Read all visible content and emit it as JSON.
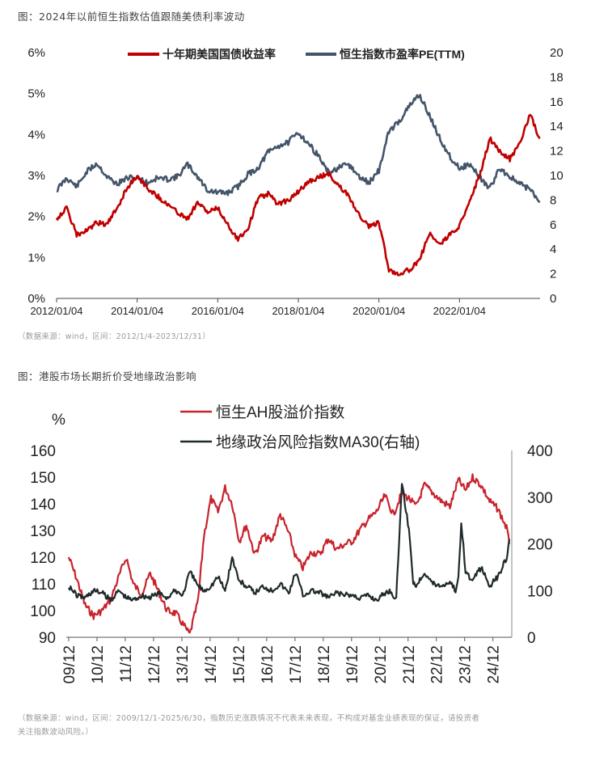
{
  "figure1": {
    "caption": "图：2024年以前恒生指数估值跟随美债利率波动",
    "source": "（数据来源：wind，区间：2012/1/4-2023/12/31）"
  },
  "figure2": {
    "caption": "图：港股市场长期折价受地缘政治影响",
    "source_line1": "（数据来源：wind，区间：2009/12/1-2025/6/30，指数历史涨跌情况不代表未来表现，不构成对基金业绩表现的保证，请投资者",
    "source_line2": "关注指数波动风险。）"
  },
  "chart_data": [
    {
      "type": "line",
      "title": "",
      "x_ticks": [
        "2012/01/04",
        "2014/01/04",
        "2016/01/04",
        "2018/01/04",
        "2020/01/04",
        "2022/01/04"
      ],
      "y_left": {
        "ticks": [
          "0%",
          "1%",
          "2%",
          "3%",
          "4%",
          "5%",
          "6%"
        ],
        "range": [
          0,
          6
        ]
      },
      "y_right": {
        "ticks": [
          "0",
          "2",
          "4",
          "6",
          "8",
          "10",
          "12",
          "14",
          "16",
          "18",
          "20"
        ],
        "range": [
          0,
          20
        ]
      },
      "legend_position": "top",
      "colors": {
        "series_1": "#c00000",
        "series_2": "#44546a"
      },
      "series": [
        {
          "name": "十年期美国国债收益率",
          "axis": "left",
          "x": [
            2012.0,
            2012.25,
            2012.5,
            2012.75,
            2013.0,
            2013.25,
            2013.5,
            2013.75,
            2014.0,
            2014.25,
            2014.5,
            2014.75,
            2015.0,
            2015.25,
            2015.5,
            2015.75,
            2016.0,
            2016.25,
            2016.5,
            2016.75,
            2017.0,
            2017.25,
            2017.5,
            2017.75,
            2018.0,
            2018.25,
            2018.5,
            2018.75,
            2019.0,
            2019.25,
            2019.5,
            2019.75,
            2020.0,
            2020.25,
            2020.5,
            2020.75,
            2021.0,
            2021.25,
            2021.5,
            2021.75,
            2022.0,
            2022.25,
            2022.5,
            2022.75,
            2023.0,
            2023.25,
            2023.5,
            2023.75,
            2023.99
          ],
          "values": [
            1.95,
            2.2,
            1.55,
            1.65,
            1.85,
            1.8,
            2.2,
            2.7,
            3.0,
            2.7,
            2.5,
            2.3,
            2.1,
            1.95,
            2.35,
            2.1,
            2.2,
            1.8,
            1.45,
            1.7,
            2.45,
            2.55,
            2.3,
            2.4,
            2.6,
            2.85,
            2.95,
            3.05,
            2.75,
            2.5,
            2.05,
            1.75,
            1.85,
            0.7,
            0.6,
            0.7,
            0.9,
            1.6,
            1.3,
            1.55,
            1.75,
            2.4,
            3.0,
            3.9,
            3.6,
            3.4,
            3.8,
            4.5,
            3.9
          ]
        },
        {
          "name": "恒生指数市盈率PE(TTM)",
          "axis": "right",
          "x": [
            2012.0,
            2012.25,
            2012.5,
            2012.75,
            2013.0,
            2013.25,
            2013.5,
            2013.75,
            2014.0,
            2014.25,
            2014.5,
            2014.75,
            2015.0,
            2015.25,
            2015.5,
            2015.75,
            2016.0,
            2016.25,
            2016.5,
            2016.75,
            2017.0,
            2017.25,
            2017.5,
            2017.75,
            2018.0,
            2018.25,
            2018.5,
            2018.75,
            2019.0,
            2019.25,
            2019.5,
            2019.75,
            2020.0,
            2020.25,
            2020.5,
            2020.75,
            2021.0,
            2021.25,
            2021.5,
            2021.75,
            2022.0,
            2022.25,
            2022.5,
            2022.75,
            2023.0,
            2023.25,
            2023.5,
            2023.75,
            2023.99
          ],
          "values": [
            8.8,
            9.8,
            9.1,
            10.3,
            11.0,
            9.9,
            9.3,
            9.8,
            9.8,
            9.4,
            9.8,
            9.7,
            9.9,
            10.9,
            9.9,
            8.8,
            8.6,
            8.6,
            9.1,
            10.1,
            10.6,
            11.9,
            12.4,
            12.7,
            13.5,
            12.6,
            11.6,
            10.2,
            10.6,
            10.9,
            9.9,
            9.4,
            10.4,
            13.6,
            14.4,
            15.6,
            16.6,
            14.9,
            13.1,
            11.6,
            10.6,
            10.9,
            9.9,
            8.9,
            10.6,
            9.9,
            9.3,
            8.9,
            7.8
          ]
        }
      ]
    },
    {
      "type": "line",
      "title": "",
      "y_unit_label": "%",
      "x_ticks": [
        "09/12",
        "10/12",
        "11/12",
        "12/12",
        "13/12",
        "14/12",
        "15/12",
        "16/12",
        "17/12",
        "18/12",
        "19/12",
        "20/12",
        "21/12",
        "22/12",
        "23/12",
        "24/12"
      ],
      "y_left": {
        "ticks": [
          "90",
          "100",
          "110",
          "120",
          "130",
          "140",
          "150",
          "160"
        ],
        "range": [
          90,
          160
        ]
      },
      "y_right": {
        "ticks": [
          "0",
          "100",
          "200",
          "300",
          "400"
        ],
        "range": [
          0,
          400
        ]
      },
      "legend_position": "top",
      "colors": {
        "series_1": "#c8232c",
        "series_2": "#1f2a2a"
      },
      "series": [
        {
          "name": "恒生AH股溢价指数",
          "axis": "left",
          "x": [
            2009.92,
            2010.2,
            2010.5,
            2010.8,
            2011.1,
            2011.4,
            2011.7,
            2011.95,
            2012.2,
            2012.5,
            2012.8,
            2013.1,
            2013.4,
            2013.7,
            2013.95,
            2014.2,
            2014.5,
            2014.7,
            2014.95,
            2015.2,
            2015.45,
            2015.7,
            2015.95,
            2016.2,
            2016.5,
            2016.8,
            2017.1,
            2017.4,
            2017.7,
            2017.95,
            2018.2,
            2018.5,
            2018.8,
            2019.1,
            2019.4,
            2019.7,
            2019.95,
            2020.2,
            2020.5,
            2020.8,
            2021.1,
            2021.4,
            2021.7,
            2021.95,
            2022.2,
            2022.5,
            2022.8,
            2023.1,
            2023.4,
            2023.7,
            2023.95,
            2024.2,
            2024.5,
            2024.8,
            2025.1,
            2025.4,
            2025.5
          ],
          "values": [
            120,
            112,
            102,
            98,
            100,
            104,
            113,
            120,
            110,
            106,
            114,
            107,
            100,
            99,
            95,
            91,
            104,
            128,
            142,
            137,
            146,
            140,
            126,
            132,
            121,
            128,
            126,
            136,
            129,
            120,
            116,
            122,
            121,
            127,
            123,
            125,
            126,
            130,
            134,
            137,
            143,
            136,
            144,
            142,
            139,
            147,
            144,
            141,
            139,
            149,
            145,
            150,
            147,
            141,
            138,
            131,
            125
          ]
        },
        {
          "name": "地缘政治风险指数MA30(右轴)",
          "axis": "right",
          "x": [
            2009.92,
            2010.2,
            2010.5,
            2010.8,
            2011.1,
            2011.4,
            2011.7,
            2011.95,
            2012.2,
            2012.5,
            2012.8,
            2013.1,
            2013.4,
            2013.7,
            2013.95,
            2014.2,
            2014.5,
            2014.7,
            2014.95,
            2015.2,
            2015.45,
            2015.7,
            2015.95,
            2016.2,
            2016.5,
            2016.8,
            2017.1,
            2017.4,
            2017.7,
            2017.95,
            2018.2,
            2018.5,
            2018.8,
            2019.1,
            2019.4,
            2019.7,
            2019.95,
            2020.2,
            2020.5,
            2020.8,
            2021.1,
            2021.3,
            2021.5,
            2021.7,
            2021.95,
            2022.1,
            2022.2,
            2022.5,
            2022.8,
            2023.1,
            2023.4,
            2023.6,
            2023.7,
            2023.8,
            2023.95,
            2024.2,
            2024.5,
            2024.8,
            2025.1,
            2025.4,
            2025.5
          ],
          "values": [
            110,
            90,
            85,
            100,
            95,
            80,
            100,
            85,
            80,
            90,
            85,
            95,
            85,
            100,
            90,
            140,
            110,
            100,
            110,
            130,
            100,
            170,
            120,
            110,
            95,
            110,
            100,
            115,
            95,
            140,
            90,
            100,
            95,
            85,
            95,
            90,
            90,
            85,
            90,
            80,
            95,
            100,
            80,
            330,
            230,
            120,
            110,
            140,
            115,
            110,
            120,
            100,
            125,
            250,
            140,
            120,
            150,
            110,
            130,
            170,
            210
          ]
        }
      ]
    }
  ]
}
